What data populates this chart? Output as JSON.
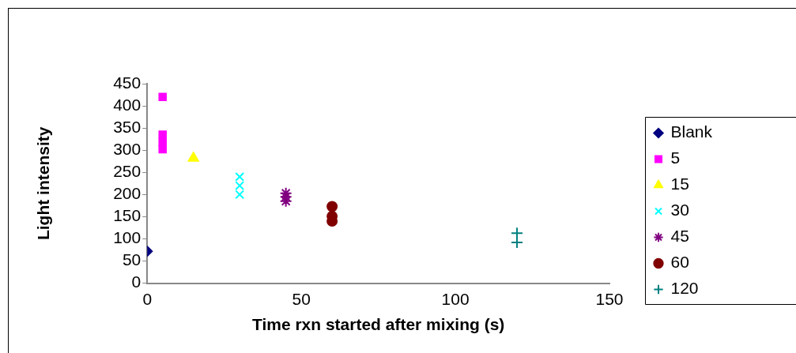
{
  "chart_data": {
    "type": "scatter",
    "xlabel": "Time rxn started after mixing (s)",
    "ylabel": "Light intensity",
    "xlim": [
      0,
      150
    ],
    "xticks": [
      0,
      50,
      100,
      150
    ],
    "ylim": [
      0,
      450
    ],
    "yticks": [
      0,
      50,
      100,
      150,
      200,
      250,
      300,
      350,
      400,
      450
    ],
    "grid": false,
    "legend": "right",
    "series": [
      {
        "name": "Blank",
        "color": "#000080",
        "marker": "diamond",
        "x": [
          0
        ],
        "values": [
          72
        ]
      },
      {
        "name": "5",
        "color": "#ff00ff",
        "marker": "square",
        "x": [
          5,
          5,
          5,
          5
        ],
        "values": [
          420,
          335,
          318,
          302
        ]
      },
      {
        "name": "15",
        "color": "#ffff00",
        "marker": "triangle",
        "x": [
          15
        ],
        "values": [
          282
        ]
      },
      {
        "name": "30",
        "color": "#00ffff",
        "marker": "cross",
        "x": [
          30,
          30,
          30
        ],
        "values": [
          240,
          220,
          200
        ]
      },
      {
        "name": "45",
        "color": "#800080",
        "x": [
          45,
          45,
          45
        ],
        "values": [
          203,
          195,
          185
        ]
      },
      {
        "name": "60",
        "color": "#800000",
        "marker": "circle",
        "x": [
          60,
          60,
          60
        ],
        "values": [
          173,
          151,
          140
        ]
      },
      {
        "name": "120",
        "color": "#008080",
        "marker": "plus",
        "x": [
          120,
          120
        ],
        "values": [
          113,
          92
        ]
      }
    ]
  }
}
